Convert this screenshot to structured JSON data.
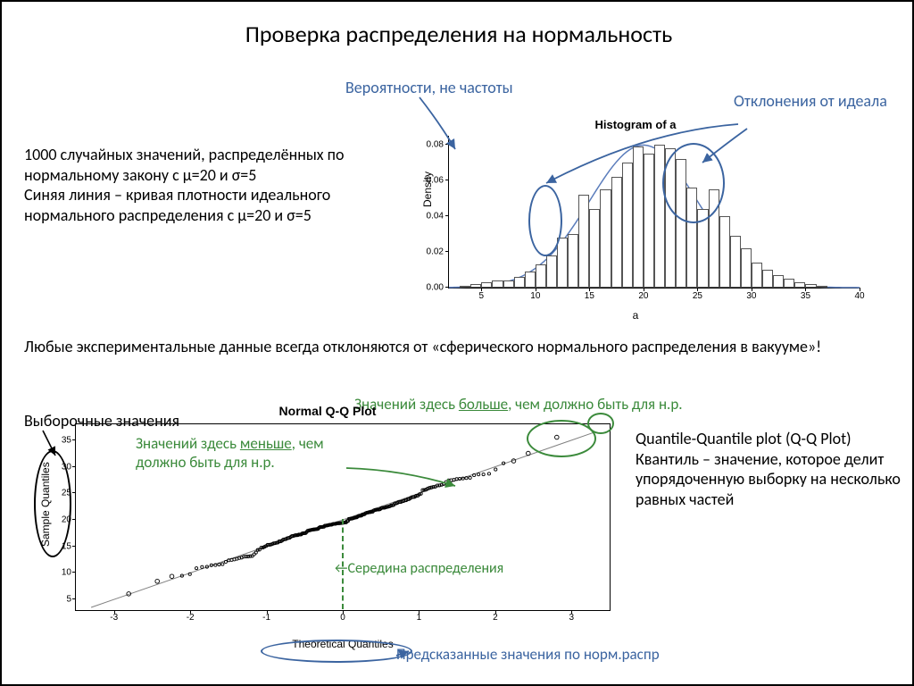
{
  "title": "Проверка распределения на нормальность",
  "annotations": {
    "prob_not_freq": "Вероятности, не частоты",
    "deviations": "Отклонения от идеала",
    "desc_para": "1000 случайных значений, распределённых по нормальному закону с μ=20 и σ=5\nСиняя линия – кривая плотности идеального нормального распределения с  μ=20 и σ=5",
    "any_exp": "Любые экспериментальные данные всегда отклоняются от «сферического нормального распределения в вакууме»!",
    "sample_values": "Выборочные значения",
    "more_than_should_pre": "Значений здесь ",
    "more_word": "больше",
    "more_than_should_post": ", чем должно быть для н.р.",
    "less_than_should_pre": "Значений здесь ",
    "less_word": "меньше",
    "less_than_should_post": ", чем должно быть для н.р.",
    "mid_dist": "Середина распределения",
    "predicted": "Предсказанные значения по норм.распр",
    "qq_desc": "Quantile-Quantile plot (Q-Q Plot)\nКвантиль – значение, которое делит упорядоченную выборку на несколько равных частей"
  },
  "colors": {
    "blue": "#3b64a0",
    "green": "#3b8a3b",
    "curve_blue": "#5b7dbc",
    "black": "#000000",
    "grey": "#808080"
  },
  "histogram": {
    "title": "Histogram of a",
    "xlabel": "a",
    "ylabel": "Density",
    "xlim": [
      2,
      40
    ],
    "ylim": [
      0,
      0.085
    ],
    "xticks": [
      5,
      10,
      15,
      20,
      25,
      30,
      35,
      40
    ],
    "yticks": [
      0.0,
      0.02,
      0.04,
      0.06,
      0.08
    ],
    "bin_width": 1,
    "bars": [
      {
        "x": 3,
        "h": 0.001
      },
      {
        "x": 4,
        "h": 0.002
      },
      {
        "x": 5,
        "h": 0.003
      },
      {
        "x": 6,
        "h": 0.004
      },
      {
        "x": 7,
        "h": 0.004
      },
      {
        "x": 8,
        "h": 0.006
      },
      {
        "x": 9,
        "h": 0.009
      },
      {
        "x": 10,
        "h": 0.013
      },
      {
        "x": 11,
        "h": 0.018
      },
      {
        "x": 12,
        "h": 0.028
      },
      {
        "x": 13,
        "h": 0.03
      },
      {
        "x": 14,
        "h": 0.052
      },
      {
        "x": 15,
        "h": 0.044
      },
      {
        "x": 16,
        "h": 0.055
      },
      {
        "x": 17,
        "h": 0.062
      },
      {
        "x": 18,
        "h": 0.07
      },
      {
        "x": 19,
        "h": 0.079
      },
      {
        "x": 20,
        "h": 0.075
      },
      {
        "x": 21,
        "h": 0.08
      },
      {
        "x": 22,
        "h": 0.078
      },
      {
        "x": 23,
        "h": 0.072
      },
      {
        "x": 24,
        "h": 0.056
      },
      {
        "x": 25,
        "h": 0.044
      },
      {
        "x": 26,
        "h": 0.055
      },
      {
        "x": 27,
        "h": 0.04
      },
      {
        "x": 28,
        "h": 0.029
      },
      {
        "x": 29,
        "h": 0.022
      },
      {
        "x": 30,
        "h": 0.014
      },
      {
        "x": 31,
        "h": 0.01
      },
      {
        "x": 32,
        "h": 0.007
      },
      {
        "x": 33,
        "h": 0.005
      },
      {
        "x": 34,
        "h": 0.003
      },
      {
        "x": 35,
        "h": 0.002
      },
      {
        "x": 36,
        "h": 0.001
      }
    ],
    "curve_mu": 20,
    "curve_sigma": 5
  },
  "qqplot": {
    "title": "Normal Q-Q Plot",
    "xlabel": "Theoretical Quantiles",
    "ylabel": "Sample Quantiles",
    "xlim": [
      -3.5,
      3.5
    ],
    "ylim": [
      3,
      38
    ],
    "xticks": [
      -3,
      -2,
      -1,
      0,
      1,
      2,
      3
    ],
    "yticks": [
      5,
      10,
      15,
      20,
      25,
      30,
      35
    ],
    "line_intercept": 20,
    "line_slope": 5,
    "n_points": 200,
    "mu": 20,
    "sigma": 5,
    "point_color": "#000000",
    "line_color": "#808080"
  }
}
